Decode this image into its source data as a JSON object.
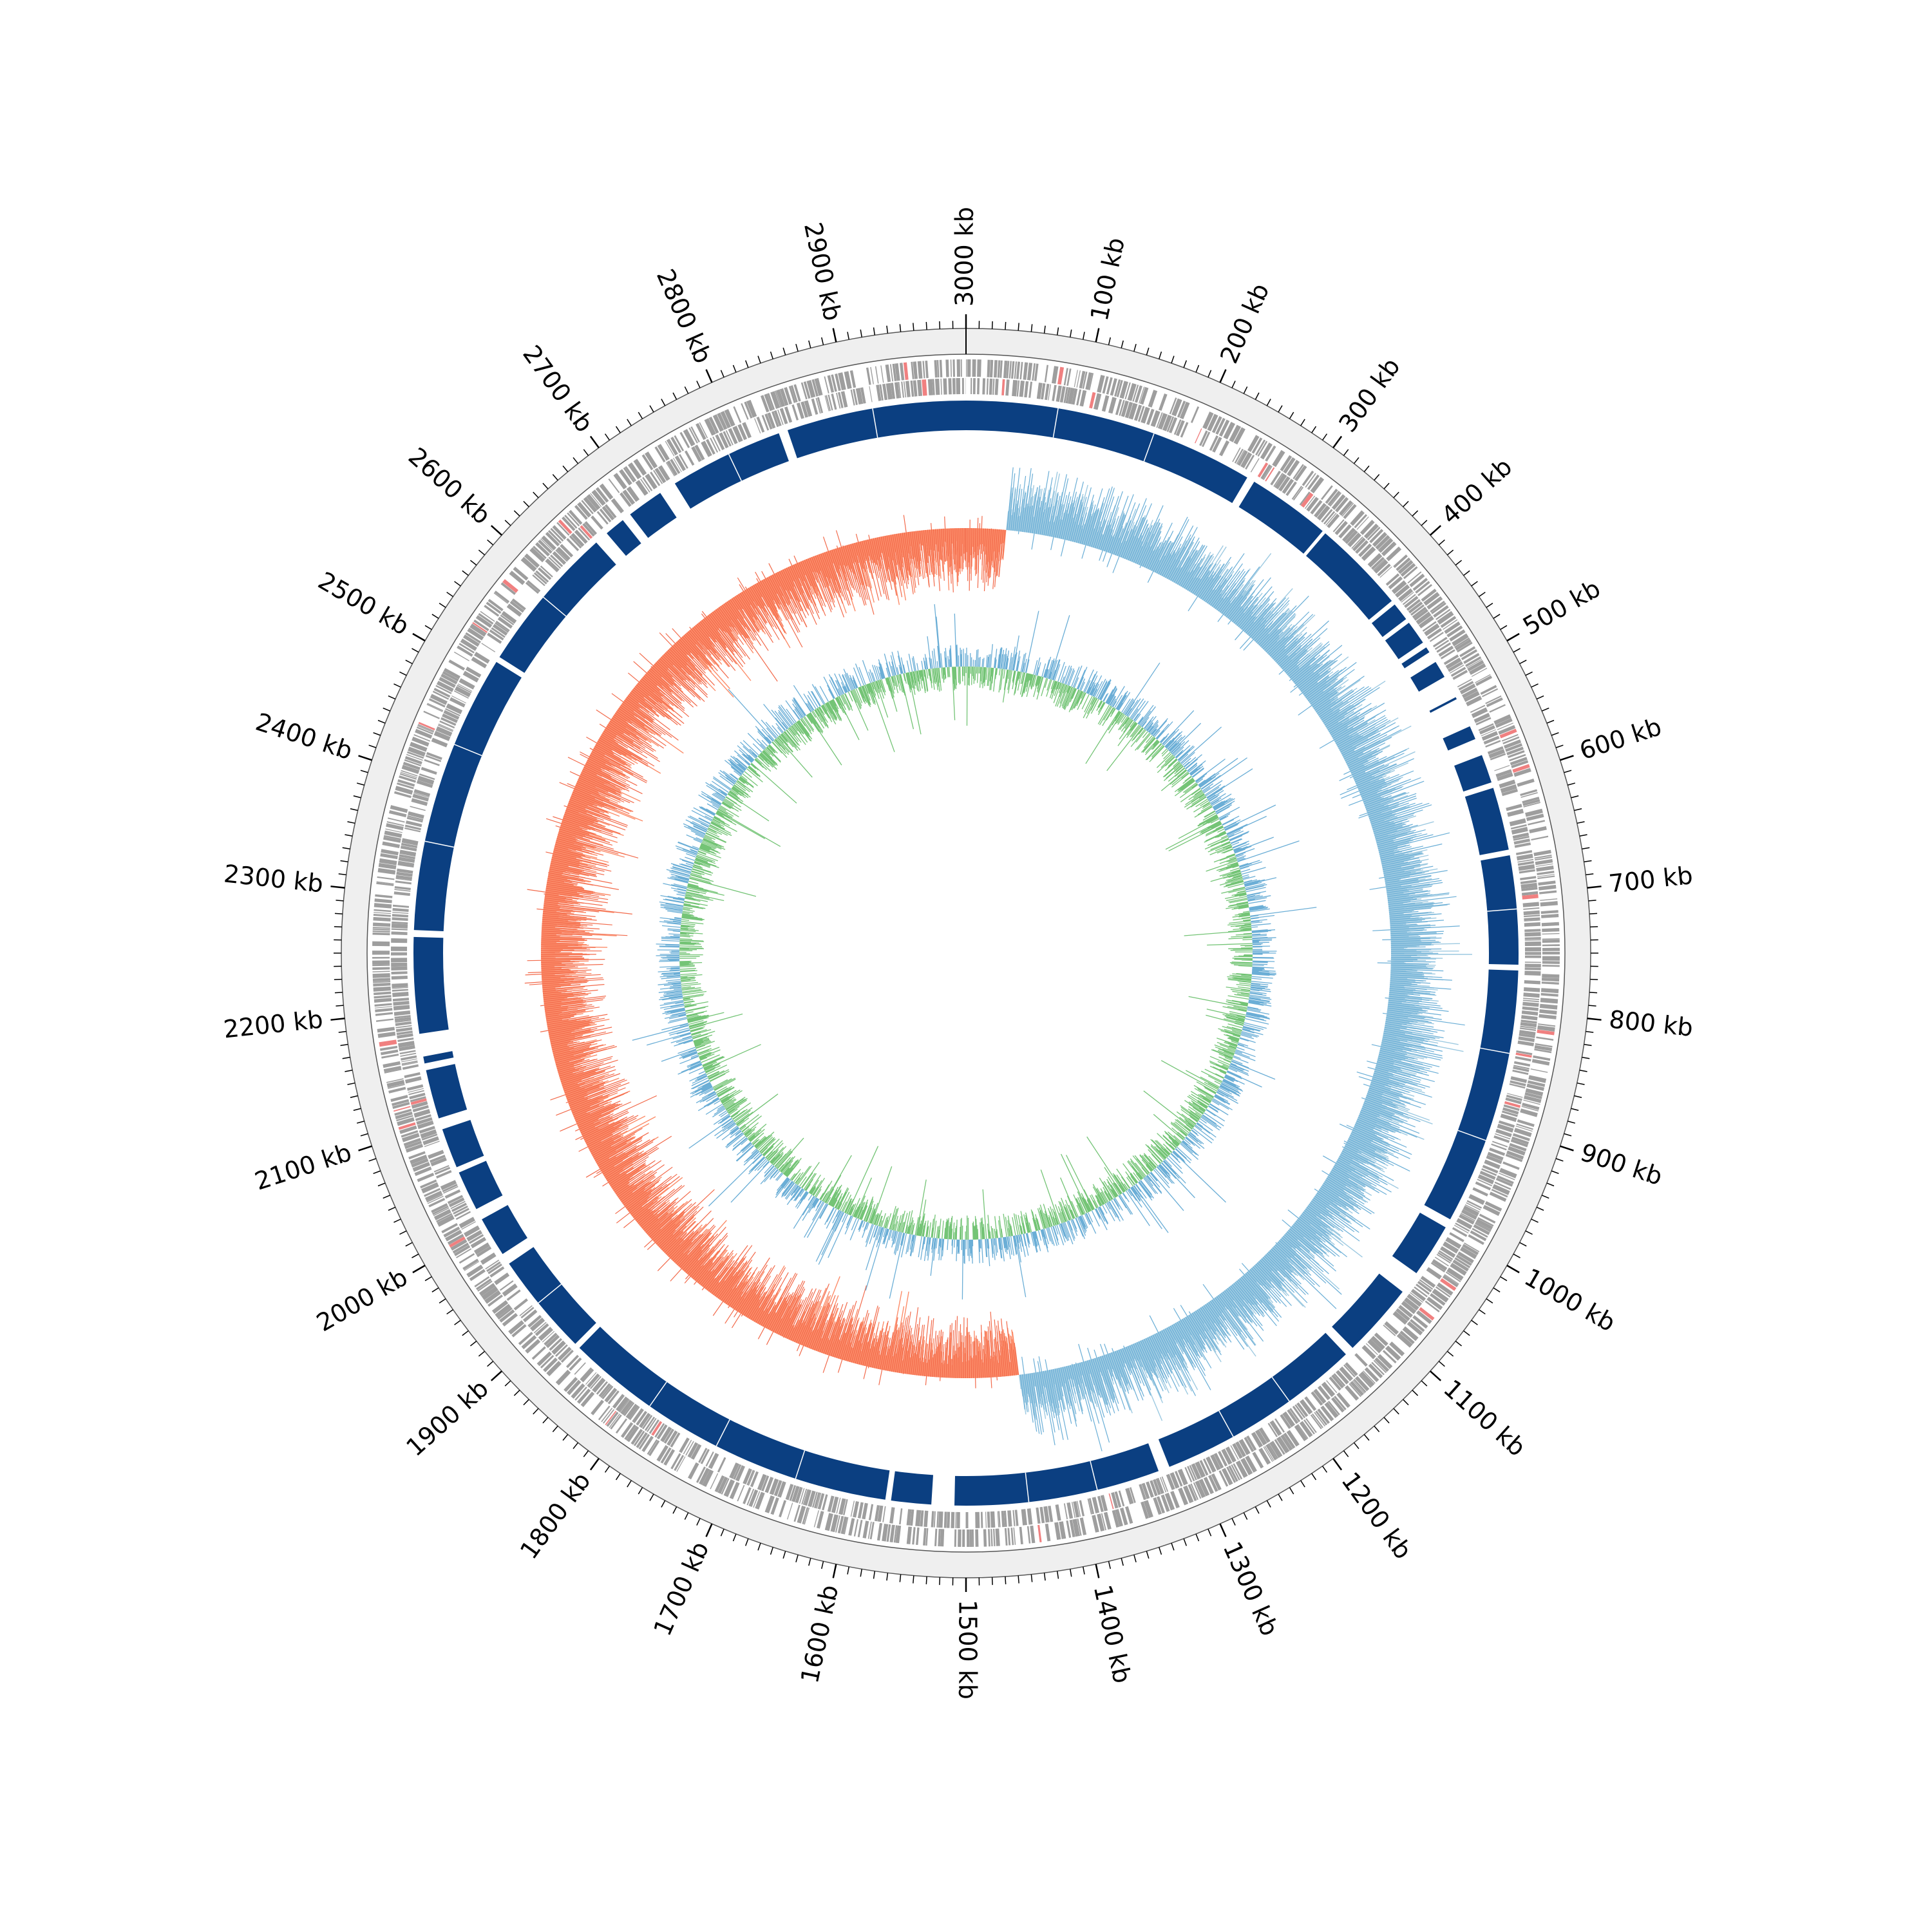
{
  "genome": {
    "length_kb": 3000,
    "tick_step_kb": 100,
    "minor_tick_step_kb": 10,
    "tick_labels": [
      "3000 kb",
      "100 kb",
      "200 kb",
      "300 kb",
      "400 kb",
      "500 kb",
      "600 kb",
      "700 kb",
      "800 kb",
      "900 kb",
      "1000 kb",
      "1100 kb",
      "1200 kb",
      "1300 kb",
      "1400 kb",
      "1500 kb",
      "1600 kb",
      "1700 kb",
      "1800 kb",
      "1900 kb",
      "2000 kb",
      "2100 kb",
      "2200 kb",
      "2300 kb",
      "2400 kb",
      "2500 kb",
      "2600 kb",
      "2700 kb",
      "2800 kb",
      "2900 kb"
    ]
  },
  "colors": {
    "outer_band": "#efefef",
    "gene_features": "#9e9e9e",
    "gene_highlight": "#f08080",
    "alignment_blocks": "#0b3f81",
    "skew_positive": "#9ecae1",
    "skew_negative": "#fc8d6a",
    "skew_outline_positive": "#6aaed6",
    "skew_outline_negative": "#f26a4b",
    "content_positive": "#74c476",
    "content_negative": "#6baed6",
    "axis": "#000000"
  },
  "tracks": {
    "alignment_blocks_kb": [
      [
        0,
        255
      ],
      [
        262,
        335
      ],
      [
        338,
        420
      ],
      [
        424,
        440
      ],
      [
        444,
        465
      ],
      [
        470,
        475
      ],
      [
        485,
        500
      ],
      [
        520,
        522
      ],
      [
        548,
        560
      ],
      [
        575,
        600
      ],
      [
        605,
        660
      ],
      [
        665,
        760
      ],
      [
        765,
        990
      ],
      [
        998,
        1045
      ],
      [
        1065,
        1130
      ],
      [
        1138,
        1320
      ],
      [
        1330,
        1510
      ],
      [
        1530,
        1565
      ],
      [
        1570,
        1870
      ],
      [
        1875,
        1965
      ],
      [
        1975,
        2010
      ],
      [
        2020,
        2055
      ],
      [
        2060,
        2095
      ],
      [
        2105,
        2148
      ],
      [
        2154,
        2160
      ],
      [
        2180,
        2264
      ],
      [
        2270,
        2515
      ],
      [
        2520,
        2650
      ],
      [
        2662,
        2680
      ],
      [
        2688,
        2720
      ],
      [
        2735,
        2835
      ],
      [
        2843,
        3000
      ]
    ],
    "skew_switch_kb": [
      45,
      1440
    ]
  }
}
